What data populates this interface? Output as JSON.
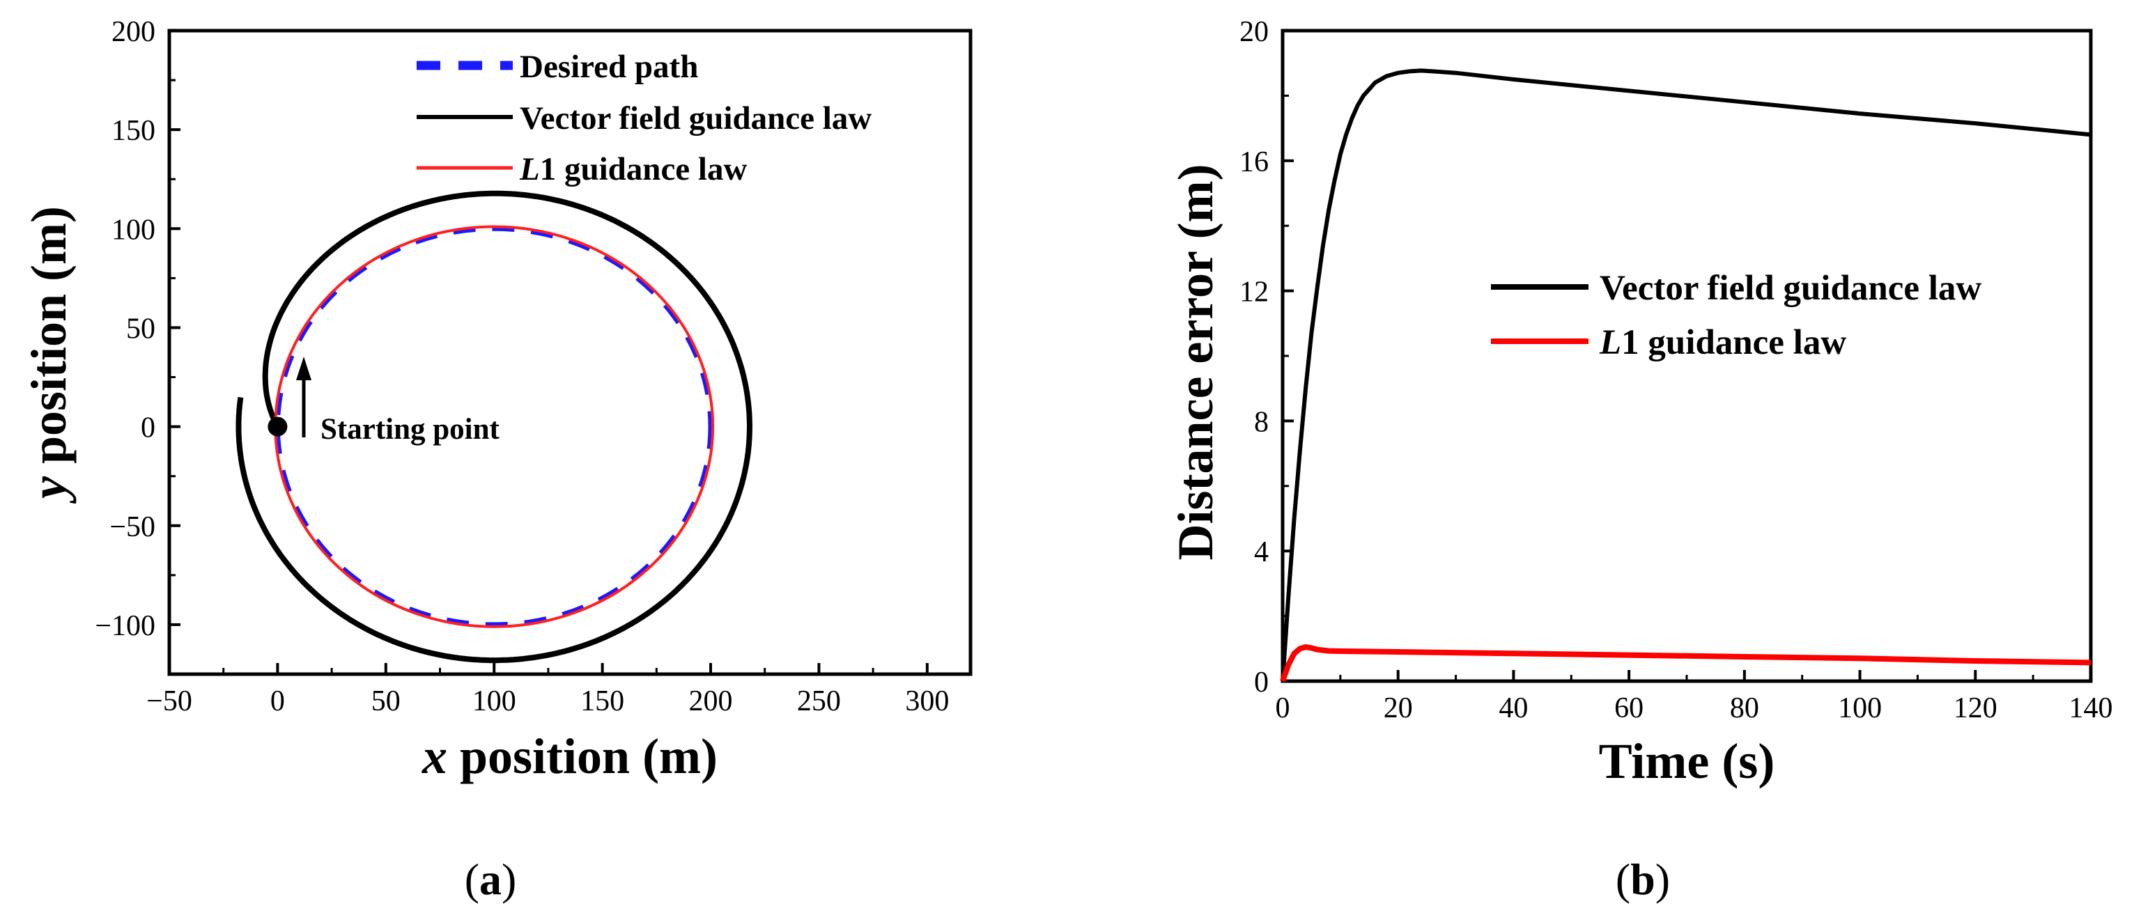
{
  "chart_data": [
    {
      "type": "line",
      "panel_label": "(a)",
      "title": "",
      "xlabel_var": "x",
      "xlabel_rest": " position (m)",
      "ylabel_var": "y",
      "ylabel_rest": " position (m)",
      "xlim": [
        -50,
        320
      ],
      "ylim": [
        -125,
        200
      ],
      "x_ticks": [
        -50,
        0,
        50,
        100,
        150,
        200,
        250,
        300
      ],
      "x_tick_labels": [
        "−50",
        "0",
        "50",
        "100",
        "150",
        "200",
        "250",
        "300"
      ],
      "y_ticks": [
        -100,
        -50,
        0,
        50,
        100,
        150,
        200
      ],
      "y_tick_labels": [
        "−100",
        "−50",
        "0",
        "50",
        "100",
        "150",
        "200"
      ],
      "legend_position": "top-center",
      "series": [
        {
          "name": "Desired path",
          "style": "dashed",
          "color": "#1a1aff",
          "circle": {
            "center": [
              100,
              0
            ],
            "radius": 100
          }
        },
        {
          "name": "Vector field guidance law",
          "style": "solid",
          "color": "#000000",
          "spiral": {
            "center": [
              100,
              0
            ],
            "start_radius": 100,
            "steady_radius": 118
          }
        },
        {
          "name_italic": "L",
          "name": "1 guidance law",
          "style": "solid",
          "color": "#ff2020",
          "circle": {
            "center": [
              100,
              0
            ],
            "radius": 101
          }
        }
      ],
      "annotation": {
        "text": "Starting point",
        "point": [
          0,
          0
        ]
      }
    },
    {
      "type": "line",
      "panel_label": "(b)",
      "title": "",
      "xlabel": "Time (s)",
      "ylabel": "Distance error (m)",
      "xlim": [
        0,
        140
      ],
      "ylim": [
        0,
        20
      ],
      "x_ticks": [
        0,
        20,
        40,
        60,
        80,
        100,
        120,
        140
      ],
      "x_tick_labels": [
        "0",
        "20",
        "40",
        "60",
        "80",
        "100",
        "120",
        "140"
      ],
      "y_ticks": [
        0,
        4,
        8,
        12,
        16,
        20
      ],
      "y_tick_labels": [
        "0",
        "4",
        "8",
        "12",
        "16",
        "20"
      ],
      "legend_position": "center-right",
      "series": [
        {
          "name": "Vector field guidance law",
          "color": "#000000",
          "x": [
            0,
            1,
            2,
            3,
            4,
            5,
            6,
            7,
            8,
            9,
            10,
            11,
            12,
            13,
            14,
            15,
            16,
            17,
            18,
            19,
            20,
            22,
            24,
            26,
            30,
            40,
            60,
            80,
            100,
            120,
            140
          ],
          "y": [
            0,
            2.6,
            5.0,
            7.1,
            9.0,
            10.7,
            12.1,
            13.4,
            14.5,
            15.4,
            16.2,
            16.8,
            17.3,
            17.7,
            18.0,
            18.2,
            18.4,
            18.5,
            18.6,
            18.65,
            18.7,
            18.75,
            18.77,
            18.75,
            18.7,
            18.5,
            18.15,
            17.8,
            17.45,
            17.15,
            16.8
          ]
        },
        {
          "name_italic": "L",
          "name": "1 guidance law",
          "color": "#ff0000",
          "x": [
            0,
            1,
            2,
            3,
            4,
            5,
            6,
            8,
            10,
            20,
            40,
            60,
            80,
            100,
            120,
            140
          ],
          "y": [
            0,
            0.5,
            0.85,
            1.0,
            1.05,
            1.02,
            0.97,
            0.93,
            0.92,
            0.9,
            0.85,
            0.8,
            0.75,
            0.7,
            0.62,
            0.57
          ]
        }
      ]
    }
  ]
}
